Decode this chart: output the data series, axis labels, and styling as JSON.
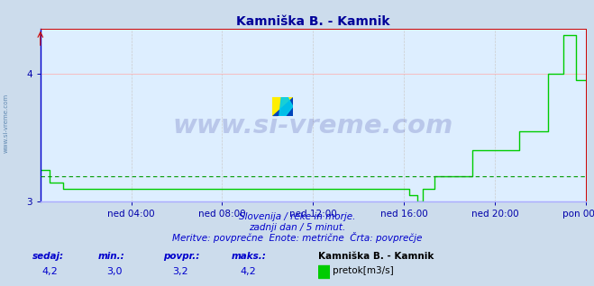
{
  "title": "Kamniška B. - Kamnik",
  "title_color": "#000099",
  "bg_color": "#ccdcec",
  "plot_bg_color": "#ddeeff",
  "grid_color_h": "#ffaaaa",
  "grid_color_v": "#cccccc",
  "line_color": "#00cc00",
  "avg_line_color": "#009900",
  "border_color_bottom": "#aaaaff",
  "border_color_right": "#cc0000",
  "border_color_left": "#0000cc",
  "border_color_top": "#cc0000",
  "ylim": [
    3.0,
    4.35
  ],
  "yticks": [
    3.0,
    4.0
  ],
  "ylabel_color": "#0000aa",
  "xlabel_color": "#0000aa",
  "watermark": "www.si-vreme.com",
  "watermark_color": "#1a1a8c",
  "watermark_alpha": 0.18,
  "avg_value": 3.2,
  "subtitle1": "Slovenija / reke in morje.",
  "subtitle2": "zadnji dan / 5 minut.",
  "subtitle3": "Meritve: povprečne  Enote: metrične  Črta: povprečje",
  "legend_station": "Kamniška B. - Kamnik",
  "legend_unit": "pretok[m3/s]",
  "label_color": "#0000cc",
  "val_color": "#0000cc",
  "xtick_labels": [
    "ned 04:00",
    "ned 08:00",
    "ned 12:00",
    "ned 16:00",
    "ned 20:00",
    "pon 00:00"
  ],
  "stat_labels": [
    "sedaj:",
    "min.:",
    "povpr.:",
    "maks.:"
  ],
  "stat_values": [
    "4,2",
    "3,0",
    "3,2",
    "4,2"
  ]
}
